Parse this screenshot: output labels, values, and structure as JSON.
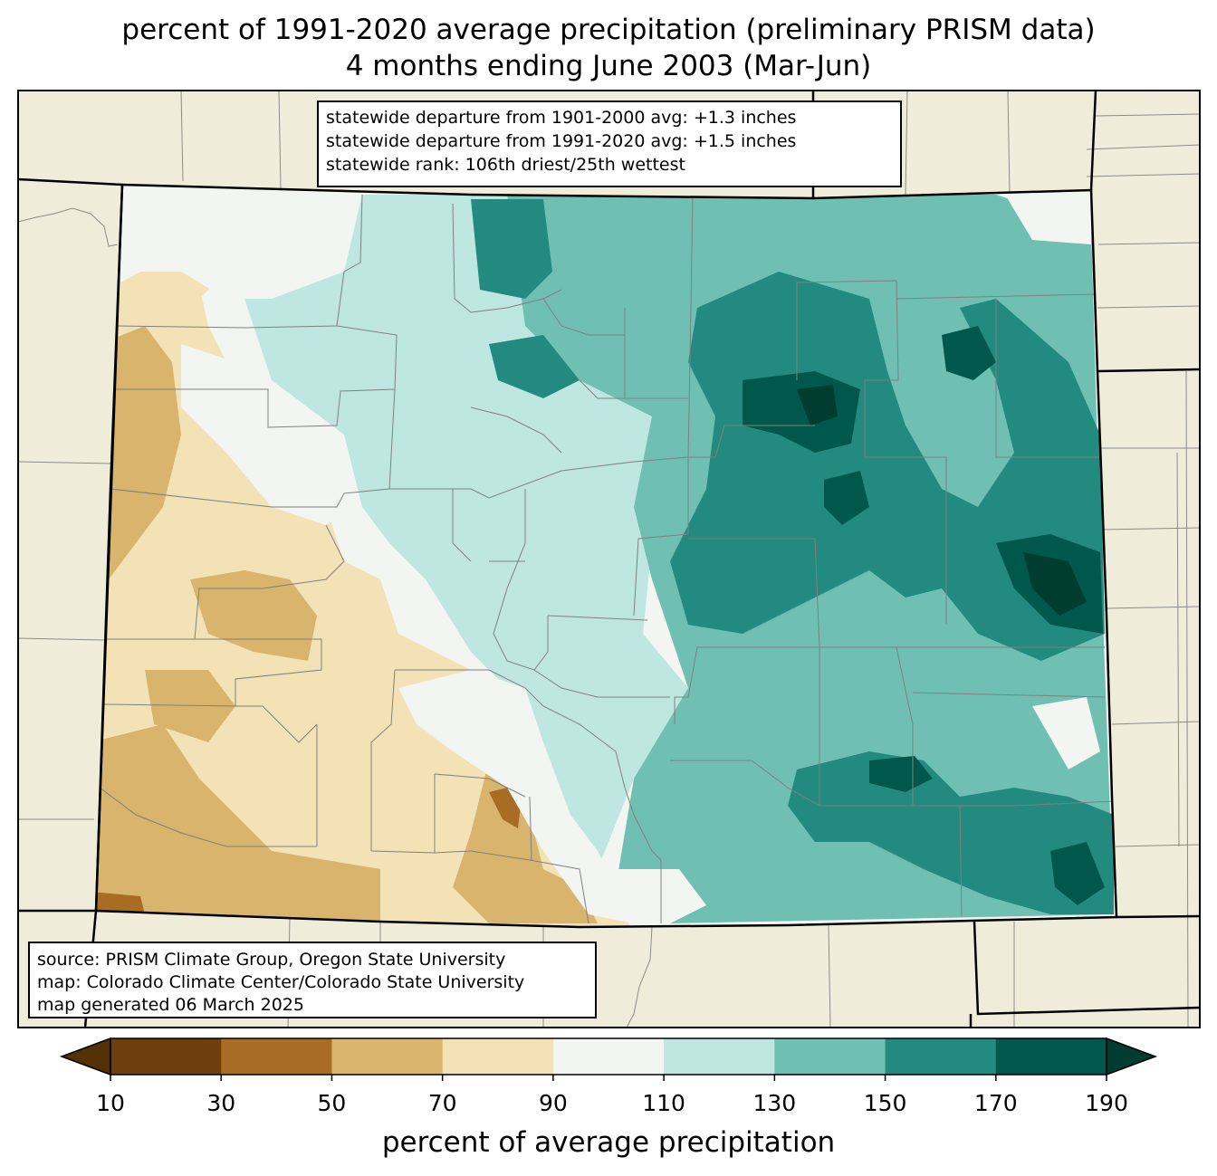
{
  "title": {
    "line1": "percent of 1991-2020 average precipitation (preliminary PRISM data)",
    "line2": "4 months ending June 2003 (Mar-Jun)"
  },
  "stats_box": {
    "line1": "statewide departure from 1901-2000 avg: +1.3 inches",
    "line2": "statewide departure from 1991-2020 avg: +1.5 inches",
    "line3": "statewide rank: 106th driest/25th wettest"
  },
  "credits_box": {
    "line1": "source: PRISM Climate Group, Oregon State University",
    "line2": "map: Colorado Climate Center/Colorado State University",
    "line3": "map generated 06 March 2025"
  },
  "colorbar": {
    "label": "percent of average precipitation",
    "ticks": [
      "10",
      "30",
      "50",
      "70",
      "90",
      "110",
      "130",
      "150",
      "170",
      "190"
    ],
    "under_color": "#543005",
    "over_color": "#003c30",
    "colors": [
      "#6e3f0e",
      "#a86c24",
      "#d8b46d",
      "#f3e2b6",
      "#f3f5f3",
      "#bfe7e2",
      "#6fbfb3",
      "#238a80",
      "#00584c"
    ]
  },
  "map": {
    "background_color": "#efedda",
    "state_fill": "#f3f5f3"
  }
}
